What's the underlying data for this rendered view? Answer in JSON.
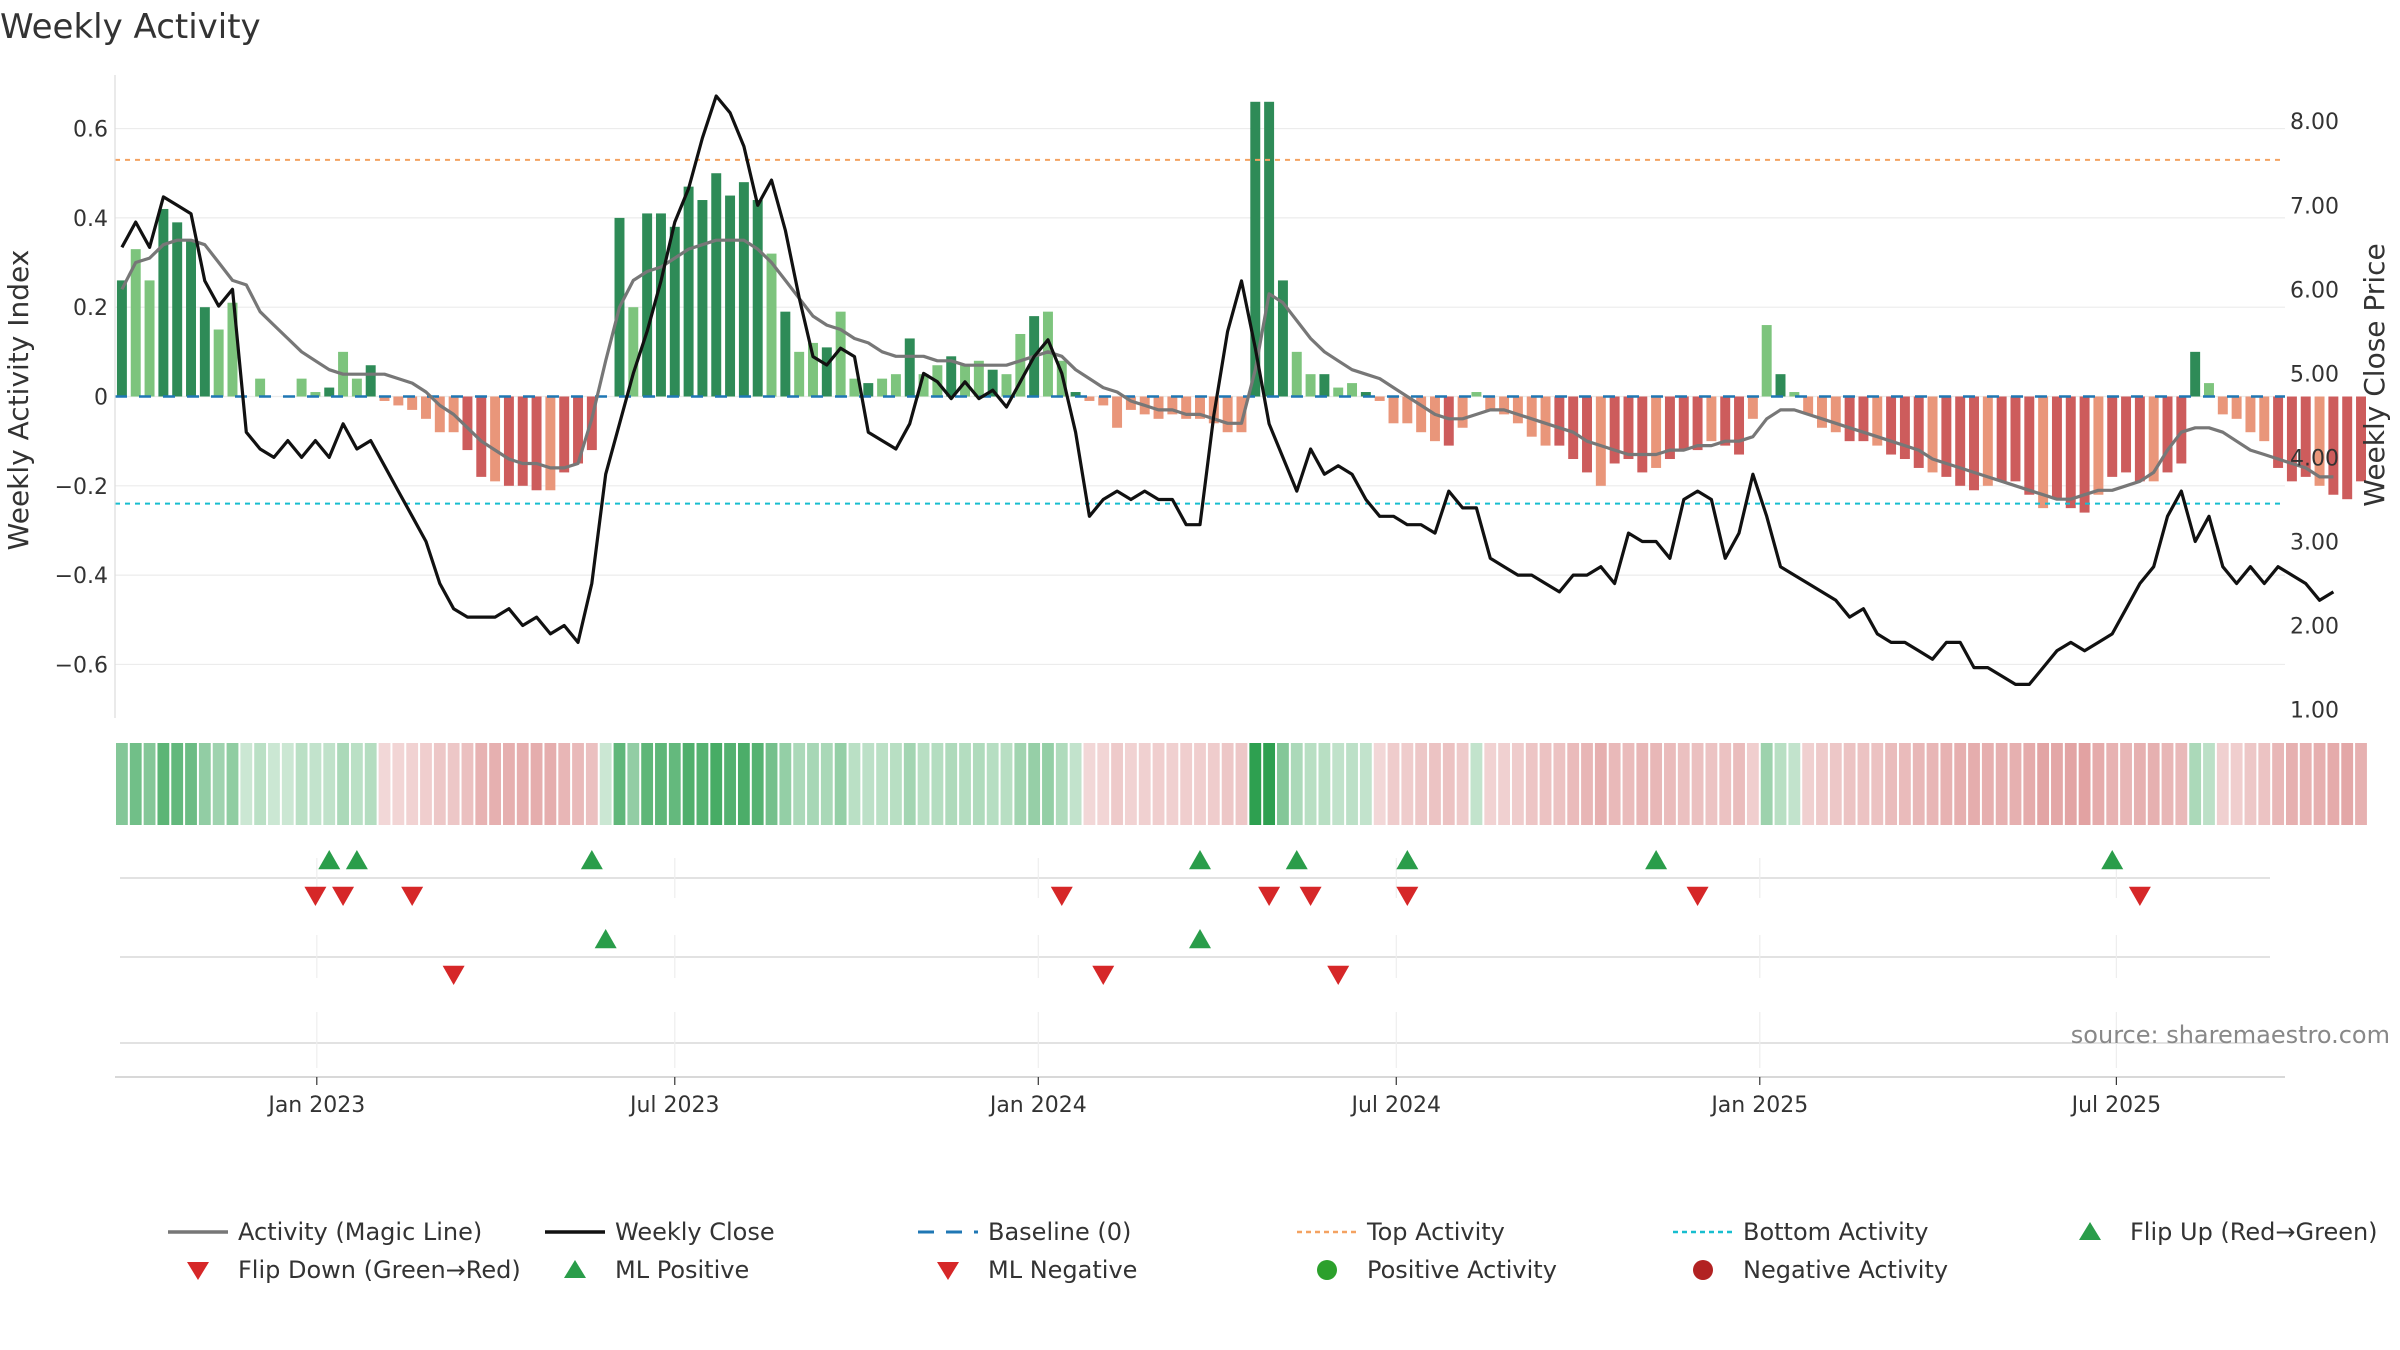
{
  "chart_data": {
    "type": "bar",
    "title": "Weekly Activity",
    "ylabel_left": "Weekly Activity Index",
    "ylabel_right": "Weekly Close Price",
    "source": "source: sharemaestro.com",
    "ylim_left": [
      -0.72,
      0.72
    ],
    "ylim_right": [
      0.9,
      8.55
    ],
    "yticks_left": [
      {
        "v": 0.6,
        "label": "0.6"
      },
      {
        "v": 0.4,
        "label": "0.4"
      },
      {
        "v": 0.2,
        "label": "0.2"
      },
      {
        "v": 0,
        "label": "0"
      },
      {
        "v": -0.2,
        "label": "−0.2"
      },
      {
        "v": -0.4,
        "label": "−0.4"
      },
      {
        "v": -0.6,
        "label": "−0.6"
      }
    ],
    "yticks_right": [
      {
        "v": 8,
        "label": "8.00"
      },
      {
        "v": 7,
        "label": "7.00"
      },
      {
        "v": 6,
        "label": "6.00"
      },
      {
        "v": 5,
        "label": "5.00"
      },
      {
        "v": 4,
        "label": "4.00"
      },
      {
        "v": 3,
        "label": "3.00"
      },
      {
        "v": 2,
        "label": "2.00"
      },
      {
        "v": 1,
        "label": "1.00"
      }
    ],
    "x_range_weeks": [
      0,
      157
    ],
    "x_ticks": [
      {
        "week": 14.6,
        "label": "Jan 2023"
      },
      {
        "week": 40.5,
        "label": "Jul 2023"
      },
      {
        "week": 66.8,
        "label": "Jan 2024"
      },
      {
        "week": 92.7,
        "label": "Jul 2024"
      },
      {
        "week": 119,
        "label": "Jan 2025"
      },
      {
        "week": 144.8,
        "label": "Jul 2025"
      }
    ],
    "top_activity": 0.53,
    "bottom_activity": -0.24,
    "activity_bars": [
      0.26,
      0.33,
      0.26,
      0.42,
      0.39,
      0.35,
      0.2,
      0.15,
      0.21,
      0,
      0.04,
      0,
      0,
      0.04,
      0.01,
      0.02,
      0.1,
      0.04,
      0.07,
      -0.01,
      -0.02,
      -0.03,
      -0.05,
      -0.08,
      -0.08,
      -0.12,
      -0.18,
      -0.19,
      -0.2,
      -0.2,
      -0.21,
      -0.21,
      -0.17,
      -0.15,
      -0.12,
      0,
      0.4,
      0.2,
      0.41,
      0.41,
      0.38,
      0.47,
      0.44,
      0.5,
      0.45,
      0.48,
      0.44,
      0.32,
      0.19,
      0.1,
      0.12,
      0.11,
      0.19,
      0.04,
      0.03,
      0.04,
      0.05,
      0.13,
      0.05,
      0.07,
      0.09,
      0.07,
      0.08,
      0.06,
      0.05,
      0.14,
      0.18,
      0.19,
      0.08,
      0.01,
      -0.01,
      -0.02,
      -0.07,
      -0.03,
      -0.04,
      -0.05,
      -0.04,
      -0.05,
      -0.05,
      -0.06,
      -0.08,
      -0.08,
      0.66,
      0.66,
      0.26,
      0.1,
      0.05,
      0.05,
      0.02,
      0.03,
      0.01,
      -0.01,
      -0.06,
      -0.06,
      -0.08,
      -0.1,
      -0.11,
      -0.07,
      0.01,
      -0.03,
      -0.04,
      -0.06,
      -0.09,
      -0.11,
      -0.11,
      -0.14,
      -0.17,
      -0.2,
      -0.15,
      -0.14,
      -0.17,
      -0.16,
      -0.14,
      -0.12,
      -0.12,
      -0.1,
      -0.11,
      -0.13,
      -0.05,
      0.16,
      0.05,
      0.01,
      -0.04,
      -0.07,
      -0.08,
      -0.1,
      -0.1,
      -0.11,
      -0.13,
      -0.14,
      -0.16,
      -0.17,
      -0.18,
      -0.2,
      -0.21,
      -0.2,
      -0.19,
      -0.19,
      -0.22,
      -0.25,
      -0.23,
      -0.25,
      -0.26,
      -0.22,
      -0.18,
      -0.17,
      -0.19,
      -0.19,
      -0.17,
      -0.15,
      0.1,
      0.03,
      -0.04,
      -0.05,
      -0.08,
      -0.1,
      -0.16,
      -0.19,
      -0.18,
      -0.2,
      -0.22,
      -0.23,
      -0.19
    ],
    "magic_line": [
      0.24,
      0.3,
      0.31,
      0.34,
      0.35,
      0.35,
      0.34,
      0.3,
      0.26,
      0.25,
      0.19,
      0.16,
      0.13,
      0.1,
      0.08,
      0.06,
      0.05,
      0.05,
      0.05,
      0.05,
      0.04,
      0.03,
      0.01,
      -0.02,
      -0.04,
      -0.07,
      -0.1,
      -0.12,
      -0.14,
      -0.15,
      -0.15,
      -0.16,
      -0.16,
      -0.15,
      -0.05,
      0.08,
      0.2,
      0.26,
      0.28,
      0.29,
      0.31,
      0.33,
      0.34,
      0.35,
      0.35,
      0.35,
      0.33,
      0.3,
      0.26,
      0.22,
      0.18,
      0.16,
      0.15,
      0.13,
      0.12,
      0.1,
      0.09,
      0.09,
      0.09,
      0.08,
      0.08,
      0.07,
      0.07,
      0.07,
      0.07,
      0.08,
      0.09,
      0.1,
      0.09,
      0.06,
      0.04,
      0.02,
      0.01,
      -0.01,
      -0.02,
      -0.03,
      -0.03,
      -0.04,
      -0.04,
      -0.05,
      -0.06,
      -0.06,
      0.06,
      0.23,
      0.21,
      0.17,
      0.13,
      0.1,
      0.08,
      0.06,
      0.05,
      0.04,
      0.02,
      0,
      -0.02,
      -0.04,
      -0.05,
      -0.05,
      -0.04,
      -0.03,
      -0.03,
      -0.04,
      -0.05,
      -0.06,
      -0.07,
      -0.08,
      -0.1,
      -0.11,
      -0.12,
      -0.13,
      -0.13,
      -0.13,
      -0.12,
      -0.12,
      -0.11,
      -0.11,
      -0.1,
      -0.1,
      -0.09,
      -0.05,
      -0.03,
      -0.03,
      -0.04,
      -0.05,
      -0.06,
      -0.07,
      -0.08,
      -0.09,
      -0.1,
      -0.11,
      -0.12,
      -0.14,
      -0.15,
      -0.16,
      -0.17,
      -0.18,
      -0.19,
      -0.2,
      -0.21,
      -0.22,
      -0.23,
      -0.23,
      -0.22,
      -0.21,
      -0.21,
      -0.2,
      -0.19,
      -0.17,
      -0.12,
      -0.08,
      -0.07,
      -0.07,
      -0.08,
      -0.1,
      -0.12,
      -0.13,
      -0.14,
      -0.15,
      -0.16,
      -0.18,
      -0.18
    ],
    "weekly_close": [
      6.5,
      6.8,
      6.5,
      7.1,
      7.0,
      6.9,
      6.1,
      5.8,
      6.0,
      4.3,
      4.1,
      4.0,
      4.2,
      4.0,
      4.2,
      4.0,
      4.4,
      4.1,
      4.2,
      3.9,
      3.6,
      3.3,
      3.0,
      2.5,
      2.2,
      2.1,
      2.1,
      2.1,
      2.2,
      2.0,
      2.1,
      1.9,
      2.0,
      1.8,
      2.5,
      3.8,
      4.4,
      5.0,
      5.5,
      6.1,
      6.8,
      7.2,
      7.8,
      8.3,
      8.1,
      7.7,
      7.0,
      7.3,
      6.7,
      5.9,
      5.2,
      5.1,
      5.3,
      5.2,
      4.3,
      4.2,
      4.1,
      4.4,
      5.0,
      4.9,
      4.7,
      4.9,
      4.7,
      4.8,
      4.6,
      4.9,
      5.2,
      5.4,
      5.0,
      4.3,
      3.3,
      3.5,
      3.6,
      3.5,
      3.6,
      3.5,
      3.5,
      3.2,
      3.2,
      4.5,
      5.5,
      6.1,
      5.3,
      4.4,
      4.0,
      3.6,
      4.1,
      3.8,
      3.9,
      3.8,
      3.5,
      3.3,
      3.3,
      3.2,
      3.2,
      3.1,
      3.6,
      3.4,
      3.4,
      2.8,
      2.7,
      2.6,
      2.6,
      2.5,
      2.4,
      2.6,
      2.6,
      2.7,
      2.5,
      3.1,
      3.0,
      3.0,
      2.8,
      3.5,
      3.6,
      3.5,
      2.8,
      3.1,
      3.8,
      3.3,
      2.7,
      2.6,
      2.5,
      2.4,
      2.3,
      2.1,
      2.2,
      1.9,
      1.8,
      1.8,
      1.7,
      1.6,
      1.8,
      1.8,
      1.5,
      1.5,
      1.4,
      1.3,
      1.3,
      1.5,
      1.7,
      1.8,
      1.7,
      1.8,
      1.9,
      2.2,
      2.5,
      2.7,
      3.3,
      3.6,
      3.0,
      3.3,
      2.7,
      2.5,
      2.7,
      2.5,
      2.7,
      2.6,
      2.5,
      2.3,
      2.4
    ],
    "flip_up": [
      15,
      17,
      34,
      78,
      85,
      93,
      111,
      144
    ],
    "flip_down": [
      14,
      16,
      21,
      68,
      83,
      86,
      93,
      114,
      146
    ],
    "ml_positive": [
      35,
      78
    ],
    "ml_negative": [
      24,
      71,
      88
    ],
    "legend": [
      {
        "label": "Activity (Magic Line)",
        "marker": "line",
        "color": "#777777"
      },
      {
        "label": "Weekly Close",
        "marker": "line",
        "color": "#111111"
      },
      {
        "label": "Baseline (0)",
        "marker": "dash",
        "color": "#1f77b4"
      },
      {
        "label": "Top Activity",
        "marker": "dot-line",
        "color": "#f4a261"
      },
      {
        "label": "Bottom Activity",
        "marker": "dot-line",
        "color": "#17becf"
      },
      {
        "label": "Flip Up (Red→Green)",
        "marker": "tri-up",
        "color": "#2a9d4a"
      },
      {
        "label": "Flip Down (Green→Red)",
        "marker": "tri-down",
        "color": "#d62728"
      },
      {
        "label": "ML Positive",
        "marker": "tri-up",
        "color": "#2a9d4a"
      },
      {
        "label": "ML Negative",
        "marker": "tri-down",
        "color": "#d62728"
      },
      {
        "label": "Positive Activity",
        "marker": "circle",
        "color": "#2ca02c"
      },
      {
        "label": "Negative Activity",
        "marker": "circle",
        "color": "#b22222"
      }
    ]
  }
}
